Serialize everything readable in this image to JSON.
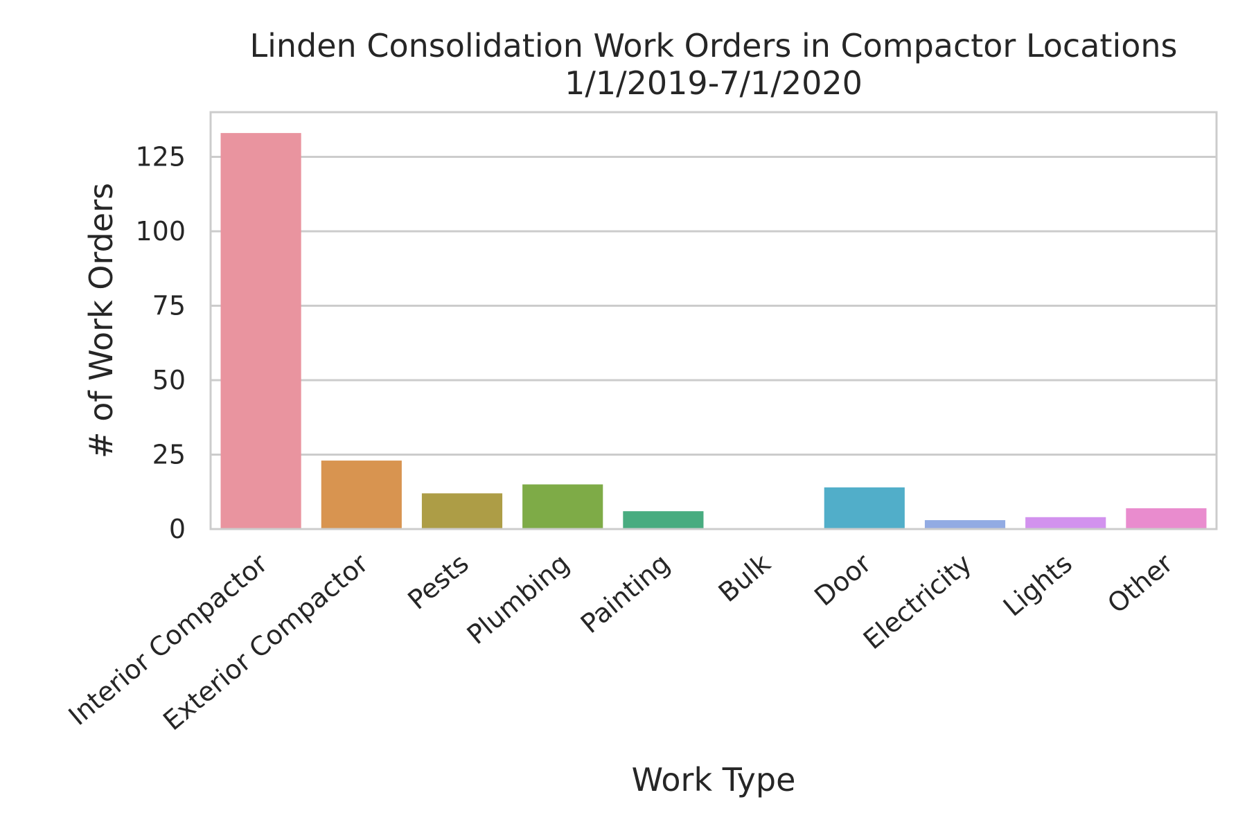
{
  "chart_data": {
    "type": "bar",
    "title": "Linden Consolidation Work Orders in Compactor Locations",
    "subtitle": "1/1/2019-7/1/2020",
    "xlabel": "Work Type",
    "ylabel": "# of Work Orders",
    "categories": [
      "Interior Compactor",
      "Exterior Compactor",
      "Pests",
      "Plumbing",
      "Painting",
      "Bulk",
      "Door",
      "Electricity",
      "Lights",
      "Other"
    ],
    "values": [
      133,
      23,
      12,
      15,
      6,
      0,
      14,
      3,
      4,
      7
    ],
    "colors": [
      "#e9949f",
      "#d89450",
      "#ad9d46",
      "#7eab47",
      "#48ac80",
      "#4aad9c",
      "#51aec9",
      "#92abe3",
      "#d292ee",
      "#e98cce"
    ],
    "ylim": [
      0,
      140
    ],
    "yticks": [
      0,
      25,
      50,
      75,
      100,
      125
    ],
    "grid": true
  }
}
